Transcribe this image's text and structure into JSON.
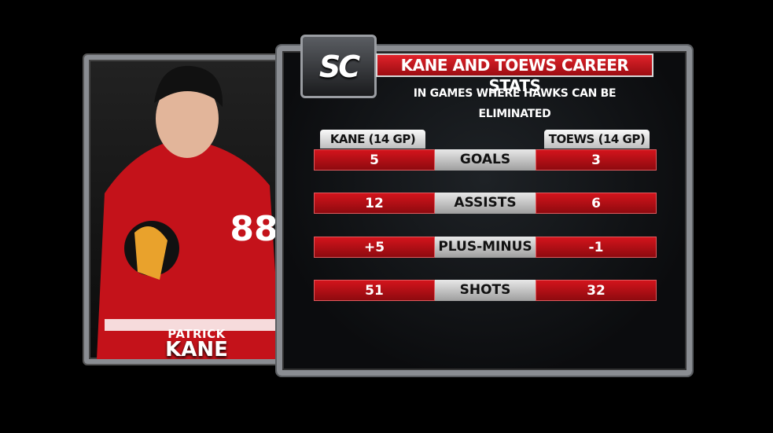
{
  "logo": "SC",
  "header": {
    "title": "KANE AND TOEWS CAREER STATS",
    "subtitle": "IN GAMES WHERE HAWKS CAN BE ELIMINATED"
  },
  "player": {
    "first_name": "PATRICK",
    "last_name": "KANE"
  },
  "table": {
    "left_header": "KANE (14 GP)",
    "right_header": "TOEWS (14 GP)",
    "rows": [
      {
        "left": "5",
        "label": "GOALS",
        "right": "3"
      },
      {
        "left": "12",
        "label": "ASSISTS",
        "right": "6"
      },
      {
        "left": "+5",
        "label": "PLUS-MINUS",
        "right": "-1"
      },
      {
        "left": "51",
        "label": "SHOTS",
        "right": "32"
      }
    ]
  }
}
